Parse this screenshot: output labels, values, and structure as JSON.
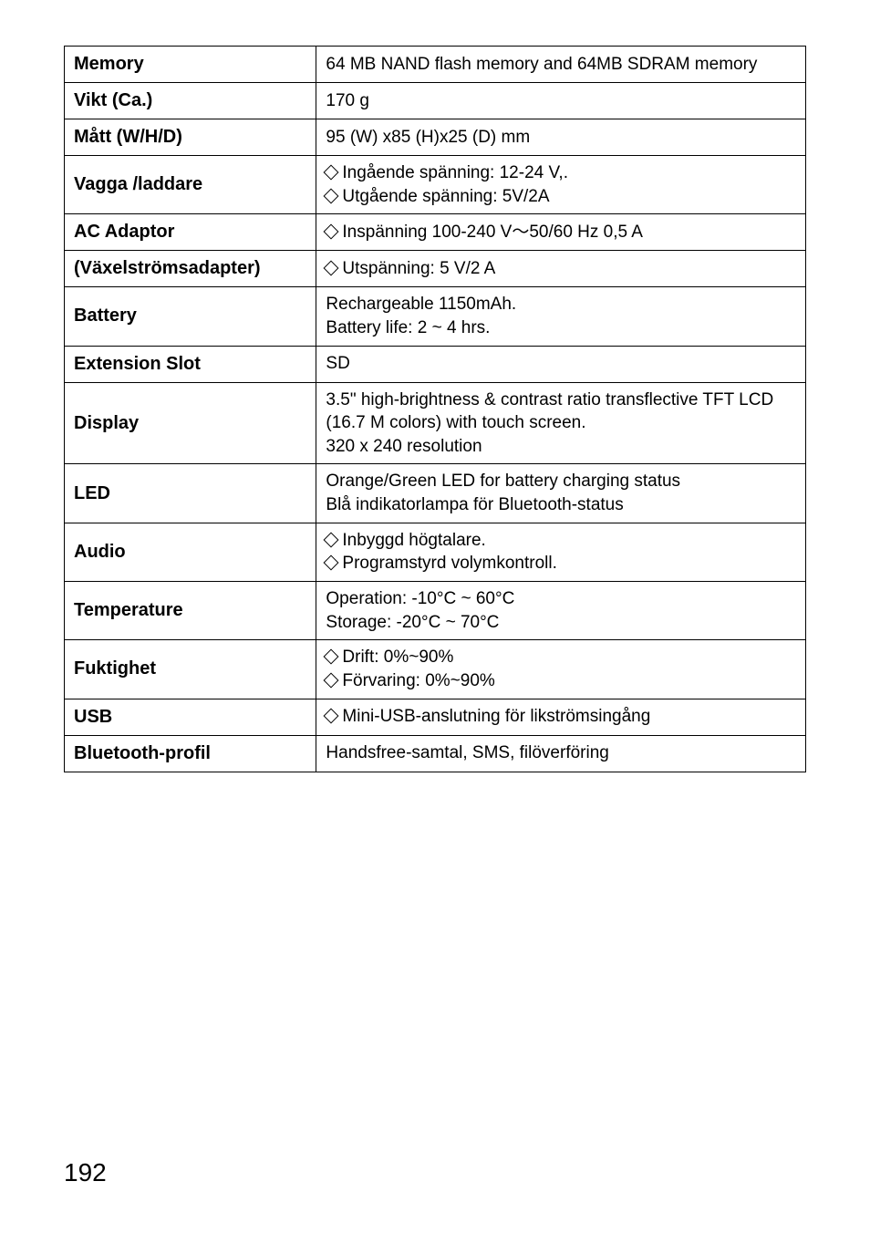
{
  "table": {
    "border_color": "#000000",
    "rows": [
      {
        "label": "Memory",
        "lines": [
          {
            "diamond": false,
            "text": "64 MB NAND flash memory and 64MB SDRAM memory"
          }
        ]
      },
      {
        "label": "Vikt (Ca.)",
        "lines": [
          {
            "diamond": false,
            "text": "170 g"
          }
        ]
      },
      {
        "label": "Mått (W/H/D)",
        "lines": [
          {
            "diamond": false,
            "text": "95 (W) x85 (H)x25 (D) mm"
          }
        ]
      },
      {
        "label": "Vagga /laddare",
        "lines": [
          {
            "diamond": true,
            "text": "Ingående spänning: 12-24 V,."
          },
          {
            "diamond": true,
            "text": "Utgående spänning: 5V/2A"
          }
        ]
      },
      {
        "label": "AC Adaptor",
        "lines": [
          {
            "diamond": true,
            "text": "Inspänning 100-240 V～50/60 Hz 0,5 A"
          }
        ]
      },
      {
        "label": "(Växelströmsadapter)",
        "lines": [
          {
            "diamond": true,
            "text": "Utspänning: 5 V/2 A"
          }
        ]
      },
      {
        "label": "Battery",
        "lines": [
          {
            "diamond": false,
            "text": "Rechargeable 1150mAh."
          },
          {
            "diamond": false,
            "text": "Battery life: 2 ~ 4 hrs."
          }
        ]
      },
      {
        "label": "Extension Slot",
        "lines": [
          {
            "diamond": false,
            "text": "SD"
          }
        ]
      },
      {
        "label": "Display",
        "lines": [
          {
            "diamond": false,
            "text": "3.5\" high-brightness & contrast ratio transflective TFT LCD (16.7 M colors) with touch screen."
          },
          {
            "diamond": false,
            "text": "320 x 240 resolution"
          }
        ]
      },
      {
        "label": "LED",
        "lines": [
          {
            "diamond": false,
            "text": "Orange/Green LED for battery charging status"
          },
          {
            "diamond": false,
            "text": "Blå indikatorlampa för Bluetooth-status"
          }
        ]
      },
      {
        "label": "Audio",
        "lines": [
          {
            "diamond": true,
            "text": "Inbyggd högtalare."
          },
          {
            "diamond": true,
            "text": "Programstyrd volymkontroll."
          }
        ]
      },
      {
        "label": "Temperature",
        "lines": [
          {
            "diamond": false,
            "text": "Operation:  -10°C ~ 60°C"
          },
          {
            "diamond": false,
            "text": "Storage:  -20°C ~ 70°C"
          }
        ]
      },
      {
        "label": "Fuktighet",
        "lines": [
          {
            "diamond": true,
            "text": "Drift: 0%~90%"
          },
          {
            "diamond": true,
            "text": "Förvaring: 0%~90%"
          }
        ]
      },
      {
        "label": "USB",
        "lines": [
          {
            "diamond": true,
            "text": "Mini-USB-anslutning för likströmsingång"
          }
        ]
      },
      {
        "label": "Bluetooth-profil",
        "lines": [
          {
            "diamond": false,
            "text": "Handsfree-samtal, SMS, filöverföring"
          }
        ]
      }
    ]
  },
  "page_number": "192"
}
